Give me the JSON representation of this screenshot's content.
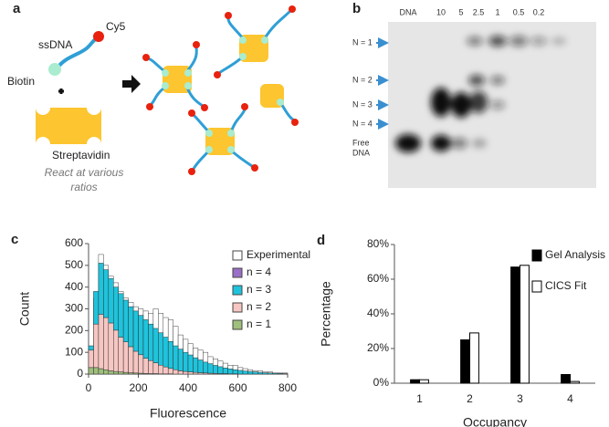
{
  "panel_a": {
    "label": "a",
    "ssdna": "ssDNA",
    "cy5": "Cy5",
    "biotin": "Biotin",
    "streptavidin": "Streptavidin",
    "note": [
      "React at various",
      "ratios"
    ]
  },
  "panel_b": {
    "label": "b",
    "lanes": [
      "DNA",
      "10",
      "5",
      "2.5",
      "1",
      "0.5",
      "0.2"
    ],
    "bands": [
      "N = 1",
      "N = 2",
      "N = 3",
      "N = 4"
    ],
    "free_dna": [
      "Free",
      "DNA"
    ]
  },
  "chart_data": [
    {
      "type": "histogram",
      "label": "c",
      "xlabel": "Fluorescence",
      "ylabel": "Count",
      "bins": [
        0,
        20,
        40,
        60,
        80,
        100,
        120,
        140,
        160,
        180,
        200,
        220,
        240,
        260,
        280,
        300,
        320,
        340,
        360,
        380,
        400,
        420,
        440,
        460,
        480,
        500,
        520,
        540,
        560,
        580,
        600,
        620,
        640,
        660,
        680,
        700,
        720,
        740,
        760,
        780,
        800
      ],
      "series": [
        {
          "name": "Experimental",
          "color": "#ffffff",
          "stack": false,
          "values": [
            120,
            350,
            550,
            500,
            450,
            420,
            380,
            350,
            330,
            310,
            300,
            290,
            280,
            300,
            280,
            260,
            250,
            220,
            180,
            160,
            140,
            120,
            110,
            100,
            80,
            70,
            60,
            50,
            40,
            40,
            30,
            25,
            20,
            15,
            15,
            10,
            10,
            5,
            5,
            5
          ]
        },
        {
          "name": "n = 4",
          "color": "#9b6fc6",
          "stack": true,
          "values": [
            0,
            0,
            0,
            0,
            0,
            0,
            0,
            0,
            0,
            0,
            0,
            0,
            0,
            0,
            0,
            0,
            0,
            0,
            0,
            0,
            0,
            0,
            0,
            0,
            0,
            0,
            0,
            0,
            0,
            0,
            0,
            0,
            0,
            0,
            0,
            0,
            0,
            0,
            0,
            0
          ]
        },
        {
          "name": "n = 3",
          "color": "#1fc3dc",
          "stack": true,
          "values": [
            20,
            150,
            235,
            220,
            205,
            198,
            200,
            192,
            184,
            185,
            181,
            177,
            168,
            158,
            149,
            137,
            124,
            110,
            100,
            88,
            78,
            67,
            59,
            50,
            44,
            37,
            32,
            26,
            23,
            19,
            17,
            14,
            12,
            10,
            8,
            6,
            5,
            4,
            3,
            2
          ]
        },
        {
          "name": "n = 2",
          "color": "#f6c6c2",
          "stack": true,
          "values": [
            80,
            200,
            250,
            240,
            220,
            190,
            160,
            140,
            120,
            100,
            85,
            70,
            60,
            50,
            40,
            32,
            25,
            20,
            15,
            12,
            10,
            8,
            6,
            5,
            4,
            3,
            2,
            2,
            1,
            1,
            0,
            0,
            0,
            0,
            0,
            0,
            0,
            0,
            0,
            0
          ]
        },
        {
          "name": "n = 1",
          "color": "#9fbf7c",
          "stack": true,
          "values": [
            30,
            30,
            25,
            20,
            15,
            12,
            10,
            8,
            6,
            5,
            4,
            3,
            2,
            2,
            1,
            1,
            1,
            0,
            0,
            0,
            0,
            0,
            0,
            0,
            0,
            0,
            0,
            0,
            0,
            0,
            0,
            0,
            0,
            0,
            0,
            0,
            0,
            0,
            0,
            0
          ]
        }
      ],
      "xlim": [
        0,
        800
      ],
      "xticks": [
        0,
        200,
        400,
        600,
        800
      ],
      "ylim": [
        0,
        600
      ],
      "yticks": [
        0,
        100,
        200,
        300,
        400,
        500,
        600
      ]
    },
    {
      "type": "bar",
      "label": "d",
      "xlabel": "Occupancy",
      "ylabel": "Percentage",
      "categories": [
        "1",
        "2",
        "3",
        "4"
      ],
      "series": [
        {
          "name": "Gel Analysis",
          "color": "#000000",
          "values": [
            2,
            25,
            67,
            5
          ]
        },
        {
          "name": "CICS Fit",
          "color": "#ffffff",
          "values": [
            2,
            29,
            68,
            1
          ]
        }
      ],
      "ylim": [
        0,
        80
      ],
      "yticks": [
        {
          "value": 0,
          "label": "0%"
        },
        {
          "value": 20,
          "label": "20%"
        },
        {
          "value": 40,
          "label": "40%"
        },
        {
          "value": 60,
          "label": "60%"
        },
        {
          "value": 80,
          "label": "80%"
        }
      ]
    }
  ]
}
